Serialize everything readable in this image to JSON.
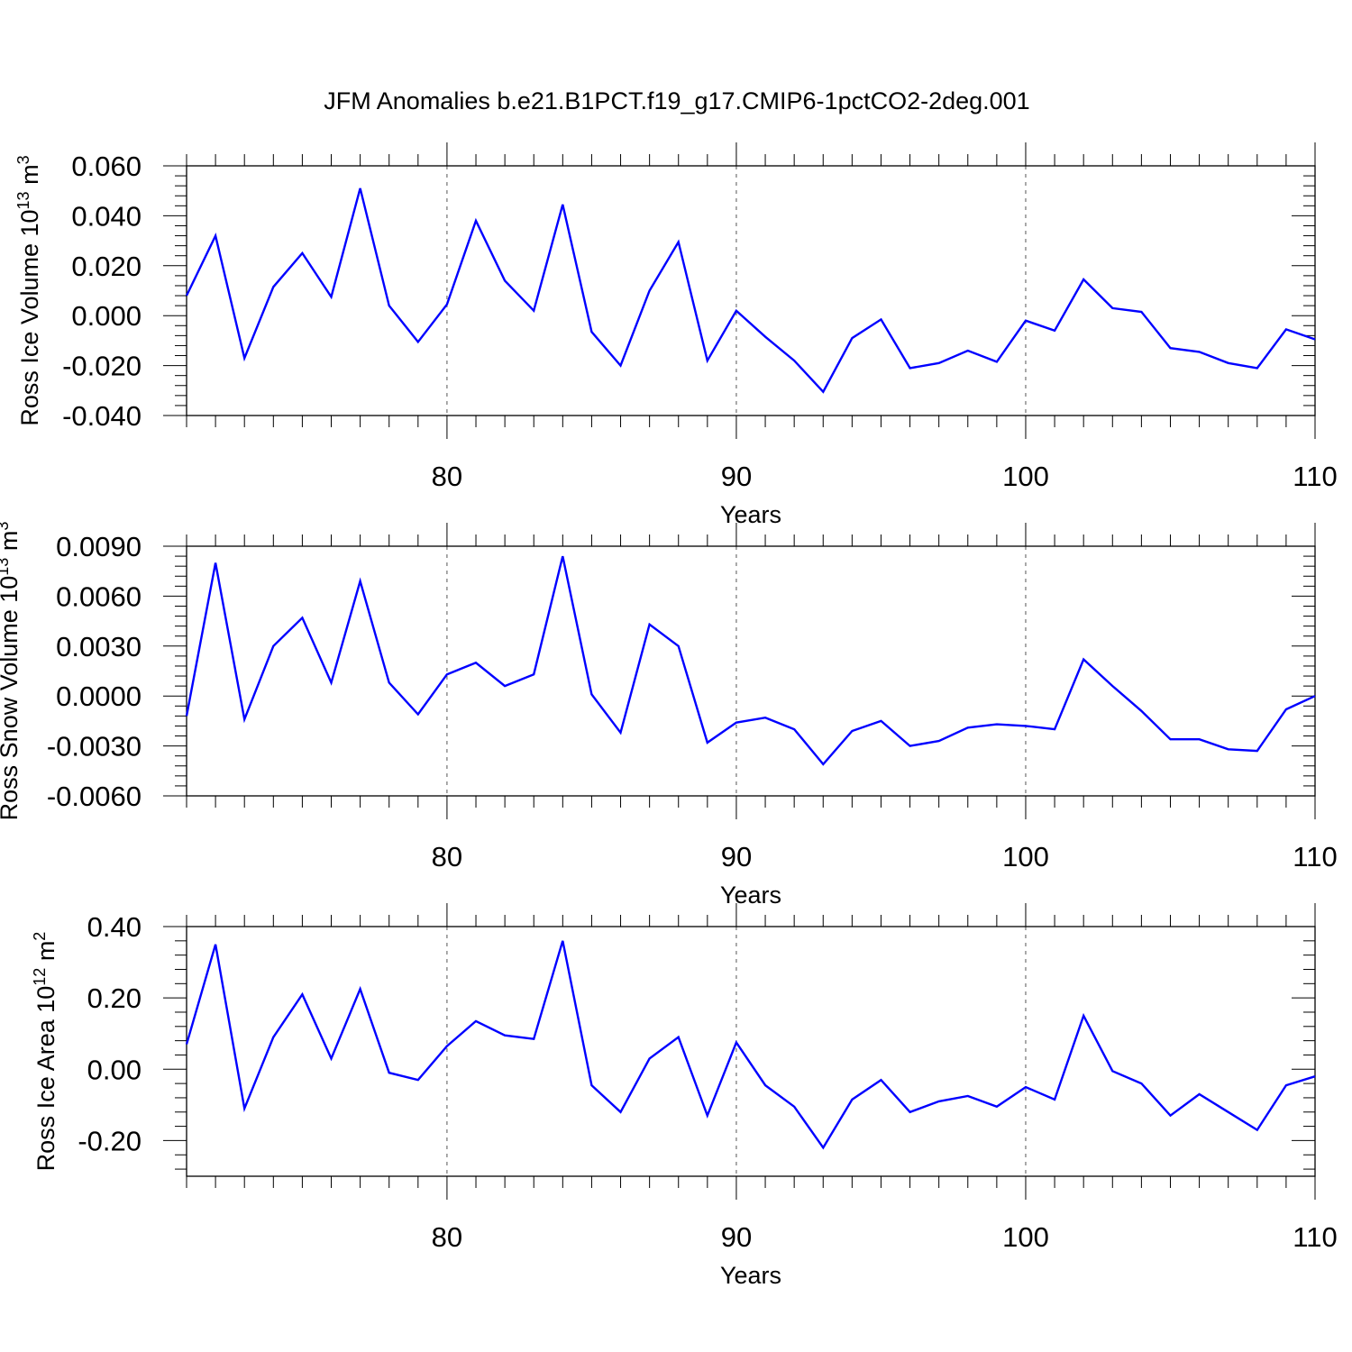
{
  "figure_title": "JFM Anomalies b.e21.B1PCT.f19_g17.CMIP6-1pctCO2-2deg.001",
  "line_color": "#0000ff",
  "chart_data": [
    {
      "type": "line",
      "ylabel_main": "Ross Ice Volume 10",
      "ylabel_exp": "13",
      "ylabel_unit": " m",
      "ylabel_unit_exp": "3",
      "xlabel": "Years",
      "xlim": [
        71,
        110
      ],
      "ylim": [
        -0.04,
        0.06
      ],
      "xticks": [
        80,
        90,
        100,
        110
      ],
      "yticks": [
        -0.04,
        -0.02,
        0.0,
        0.02,
        0.04,
        0.06
      ],
      "ytick_labels": [
        "-0.040",
        "-0.020",
        "0.000",
        "0.020",
        "0.040",
        "0.060"
      ],
      "x": [
        71,
        72,
        73,
        74,
        75,
        76,
        77,
        78,
        79,
        80,
        81,
        82,
        83,
        84,
        85,
        86,
        87,
        88,
        89,
        90,
        91,
        92,
        93,
        94,
        95,
        96,
        97,
        98,
        99,
        100,
        101,
        102,
        103,
        104,
        105,
        106,
        107,
        108,
        109,
        110
      ],
      "values": [
        0.008,
        0.032,
        -0.017,
        0.0115,
        0.025,
        0.0075,
        0.051,
        0.004,
        -0.0105,
        0.0045,
        0.038,
        0.014,
        0.002,
        0.0445,
        -0.0065,
        -0.02,
        0.01,
        0.0295,
        -0.018,
        0.002,
        -0.0085,
        -0.018,
        -0.0305,
        -0.009,
        -0.0015,
        -0.021,
        -0.019,
        -0.014,
        -0.0185,
        -0.002,
        -0.006,
        0.0145,
        0.003,
        0.0015,
        -0.013,
        -0.0145,
        -0.019,
        -0.021,
        -0.0055,
        -0.0095
      ]
    },
    {
      "type": "line",
      "ylabel_main": "Ross Snow Volume 10",
      "ylabel_exp": "13",
      "ylabel_unit": " m",
      "ylabel_unit_exp": "3",
      "xlabel": "Years",
      "xlim": [
        71,
        110
      ],
      "ylim": [
        -0.006,
        0.009
      ],
      "xticks": [
        80,
        90,
        100,
        110
      ],
      "yticks": [
        -0.006,
        -0.003,
        0.0,
        0.003,
        0.006,
        0.009
      ],
      "ytick_labels": [
        "-0.0060",
        "-0.0030",
        "0.0000",
        "0.0030",
        "0.0060",
        "0.0090"
      ],
      "x": [
        71,
        72,
        73,
        74,
        75,
        76,
        77,
        78,
        79,
        80,
        81,
        82,
        83,
        84,
        85,
        86,
        87,
        88,
        89,
        90,
        91,
        92,
        93,
        94,
        95,
        96,
        97,
        98,
        99,
        100,
        101,
        102,
        103,
        104,
        105,
        106,
        107,
        108,
        109,
        110
      ],
      "values": [
        -0.0012,
        0.008,
        -0.0014,
        0.003,
        0.0047,
        0.0008,
        0.0069,
        0.0008,
        -0.0011,
        0.0013,
        0.002,
        0.0006,
        0.0013,
        0.0084,
        0.0001,
        -0.0022,
        0.0043,
        0.003,
        -0.0028,
        -0.0016,
        -0.0013,
        -0.002,
        -0.0041,
        -0.0021,
        -0.0015,
        -0.003,
        -0.0027,
        -0.0019,
        -0.0017,
        -0.0018,
        -0.002,
        0.0022,
        0.0006,
        -0.0009,
        -0.0026,
        -0.0026,
        -0.0032,
        -0.0033,
        -0.0008,
        0.0
      ]
    },
    {
      "type": "line",
      "ylabel_main": "Ross Ice Area 10",
      "ylabel_exp": "12",
      "ylabel_unit": " m",
      "ylabel_unit_exp": "2",
      "xlabel": "Years",
      "xlim": [
        71,
        110
      ],
      "ylim": [
        -0.3,
        0.4
      ],
      "xticks": [
        80,
        90,
        100,
        110
      ],
      "yticks": [
        -0.2,
        0.0,
        0.2,
        0.4
      ],
      "ytick_labels": [
        "-0.20",
        "0.00",
        "0.20",
        "0.40"
      ],
      "x": [
        71,
        72,
        73,
        74,
        75,
        76,
        77,
        78,
        79,
        80,
        81,
        82,
        83,
        84,
        85,
        86,
        87,
        88,
        89,
        90,
        91,
        92,
        93,
        94,
        95,
        96,
        97,
        98,
        99,
        100,
        101,
        102,
        103,
        104,
        105,
        106,
        107,
        108,
        109,
        110
      ],
      "values": [
        0.07,
        0.35,
        -0.11,
        0.09,
        0.21,
        0.03,
        0.225,
        -0.01,
        -0.03,
        0.065,
        0.135,
        0.095,
        0.085,
        0.36,
        -0.045,
        -0.12,
        0.03,
        0.09,
        -0.13,
        0.075,
        -0.045,
        -0.105,
        -0.22,
        -0.085,
        -0.03,
        -0.12,
        -0.09,
        -0.075,
        -0.105,
        -0.05,
        -0.085,
        0.15,
        -0.005,
        -0.04,
        -0.13,
        -0.07,
        -0.12,
        -0.17,
        -0.045,
        -0.02
      ]
    }
  ]
}
